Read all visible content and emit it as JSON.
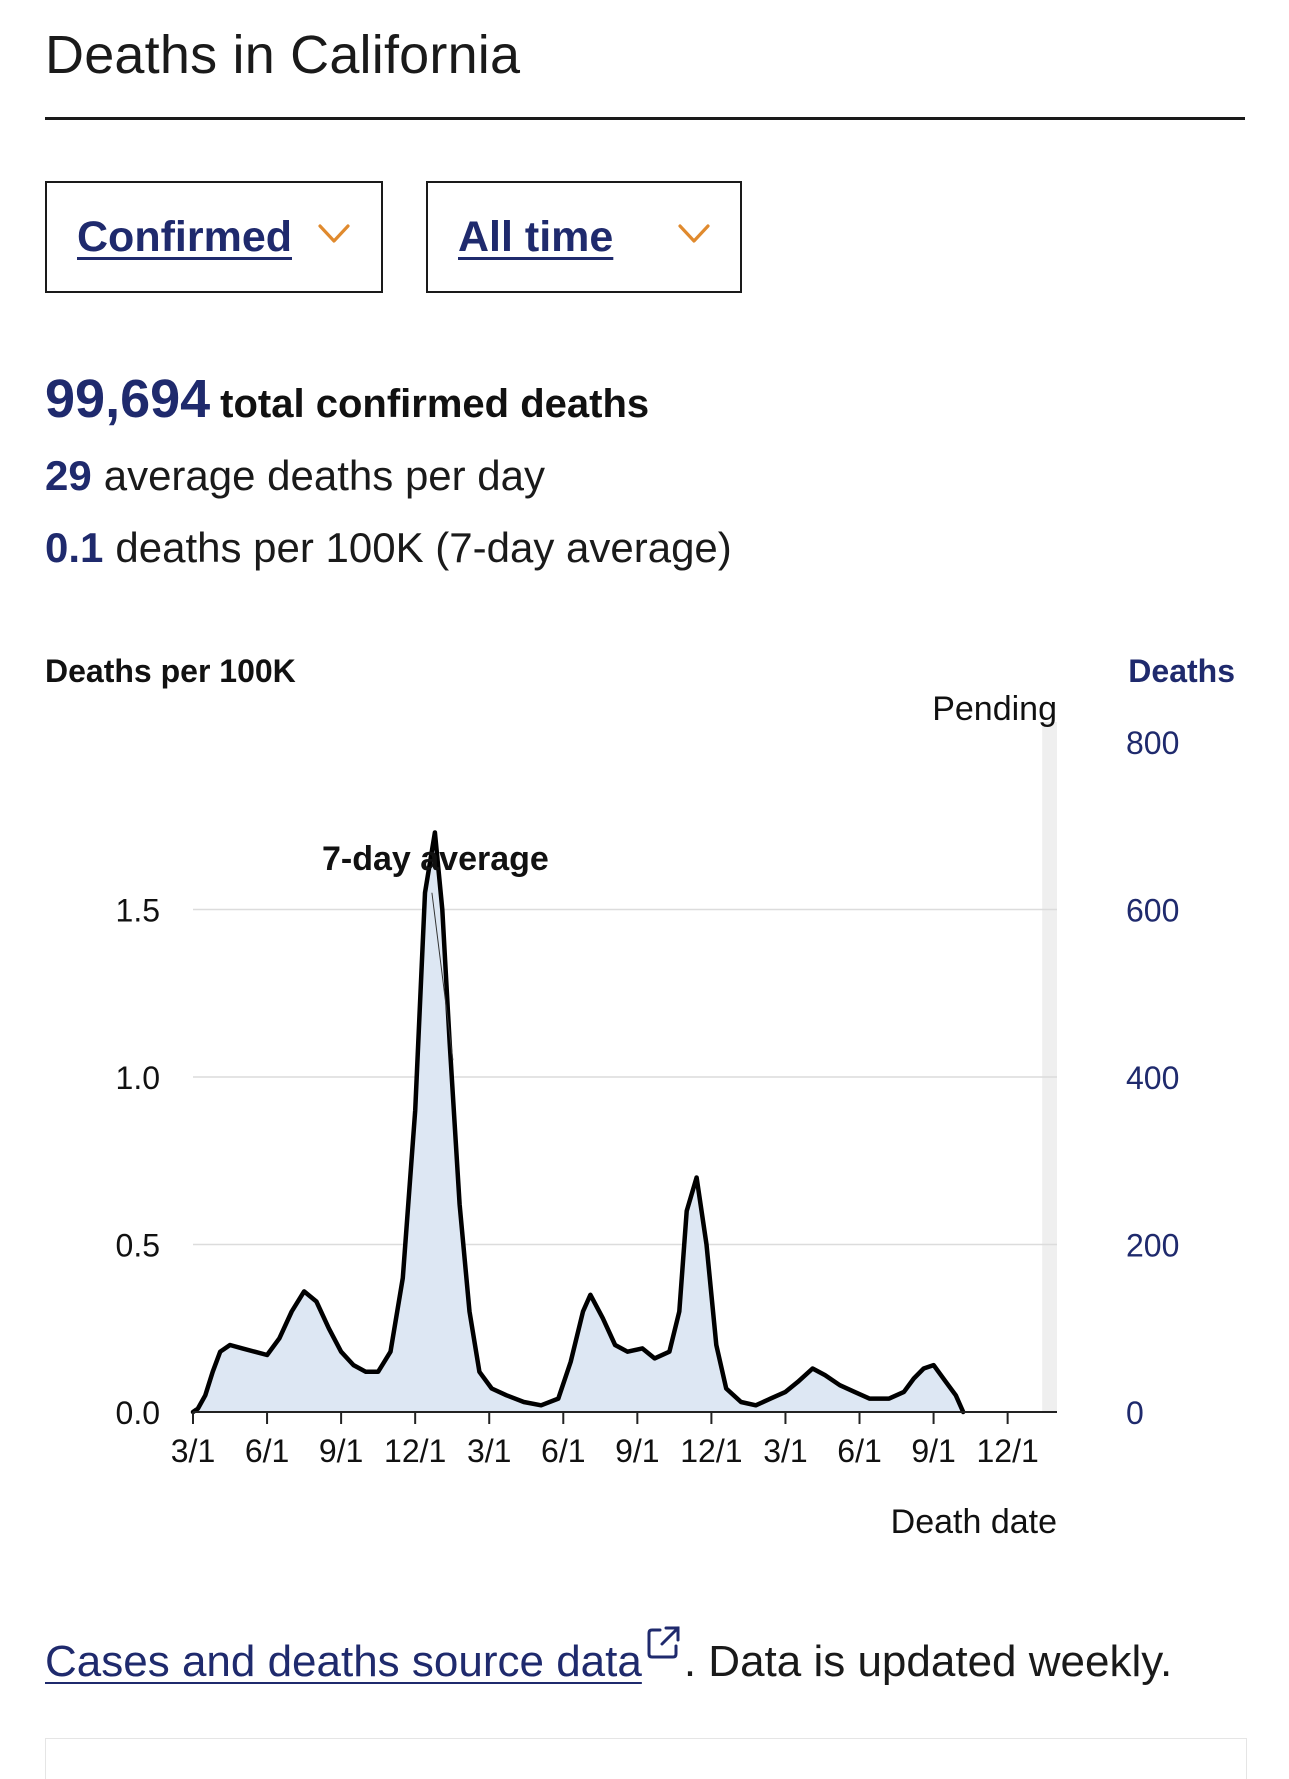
{
  "page": {
    "title": "Deaths in California"
  },
  "filters": {
    "type_label": "Confirmed",
    "range_label": "All time"
  },
  "stats": {
    "total_value": "99,694",
    "total_label": "total confirmed deaths",
    "avg_value": "29",
    "avg_label": "average deaths per day",
    "rate_value": "0.1",
    "rate_label": "deaths per 100K (7-day average)"
  },
  "colors": {
    "accent": "#1f2a6d",
    "chevron": "#e08a2e",
    "area": "#dde7f3",
    "line": "#000000",
    "pending": "#efefef"
  },
  "chart_data": {
    "type": "area",
    "title": "Deaths per 100K",
    "left_axis_label": "Deaths per 100K",
    "right_axis_label": "Deaths",
    "xlabel": "Death date",
    "pending_label": "Pending",
    "annotation": "7-day average",
    "left_ylim": [
      0,
      2.0
    ],
    "right_ylim": [
      0,
      800
    ],
    "left_ticks": [
      "0.0",
      "0.5",
      "1.0",
      "1.5"
    ],
    "right_ticks": [
      "0",
      "200",
      "400",
      "600",
      "800"
    ],
    "x_ticks": [
      "3/1",
      "6/1",
      "9/1",
      "12/1",
      "3/1",
      "6/1",
      "9/1",
      "12/1",
      "3/1",
      "6/1",
      "9/1",
      "12/1"
    ],
    "x_months_range": [
      0,
      35
    ],
    "pending_months_range": [
      34.4,
      35
    ],
    "series": [
      {
        "name": "7-day average",
        "unit": "deaths per 100K",
        "points": [
          [
            0,
            0.0
          ],
          [
            0.2,
            0.01
          ],
          [
            0.5,
            0.05
          ],
          [
            0.8,
            0.12
          ],
          [
            1.1,
            0.18
          ],
          [
            1.5,
            0.2
          ],
          [
            2.0,
            0.19
          ],
          [
            2.5,
            0.18
          ],
          [
            3.0,
            0.17
          ],
          [
            3.5,
            0.22
          ],
          [
            4.0,
            0.3
          ],
          [
            4.5,
            0.36
          ],
          [
            5.0,
            0.33
          ],
          [
            5.5,
            0.25
          ],
          [
            6.0,
            0.18
          ],
          [
            6.5,
            0.14
          ],
          [
            7.0,
            0.12
          ],
          [
            7.5,
            0.12
          ],
          [
            8.0,
            0.18
          ],
          [
            8.5,
            0.4
          ],
          [
            9.0,
            0.9
          ],
          [
            9.4,
            1.55
          ],
          [
            9.8,
            1.73
          ],
          [
            10.1,
            1.5
          ],
          [
            10.4,
            1.1
          ],
          [
            10.8,
            0.62
          ],
          [
            11.2,
            0.3
          ],
          [
            11.6,
            0.12
          ],
          [
            12.1,
            0.07
          ],
          [
            12.7,
            0.05
          ],
          [
            13.4,
            0.03
          ],
          [
            14.1,
            0.02
          ],
          [
            14.8,
            0.04
          ],
          [
            15.3,
            0.15
          ],
          [
            15.8,
            0.3
          ],
          [
            16.1,
            0.35
          ],
          [
            16.6,
            0.28
          ],
          [
            17.1,
            0.2
          ],
          [
            17.6,
            0.18
          ],
          [
            18.2,
            0.19
          ],
          [
            18.7,
            0.16
          ],
          [
            19.3,
            0.18
          ],
          [
            19.7,
            0.3
          ],
          [
            20.0,
            0.6
          ],
          [
            20.4,
            0.7
          ],
          [
            20.8,
            0.5
          ],
          [
            21.2,
            0.2
          ],
          [
            21.6,
            0.07
          ],
          [
            22.2,
            0.03
          ],
          [
            22.8,
            0.02
          ],
          [
            23.4,
            0.04
          ],
          [
            24.0,
            0.06
          ],
          [
            24.5,
            0.09
          ],
          [
            25.1,
            0.13
          ],
          [
            25.6,
            0.11
          ],
          [
            26.2,
            0.08
          ],
          [
            26.8,
            0.06
          ],
          [
            27.4,
            0.04
          ],
          [
            28.2,
            0.04
          ],
          [
            28.8,
            0.06
          ],
          [
            29.2,
            0.1
          ],
          [
            29.6,
            0.13
          ],
          [
            30.0,
            0.14
          ],
          [
            30.5,
            0.09
          ],
          [
            30.9,
            0.05
          ],
          [
            31.2,
            0.0
          ]
        ]
      }
    ]
  },
  "footer": {
    "link_text": "Cases and deaths source data",
    "suffix_text": ". Data is updated weekly."
  }
}
